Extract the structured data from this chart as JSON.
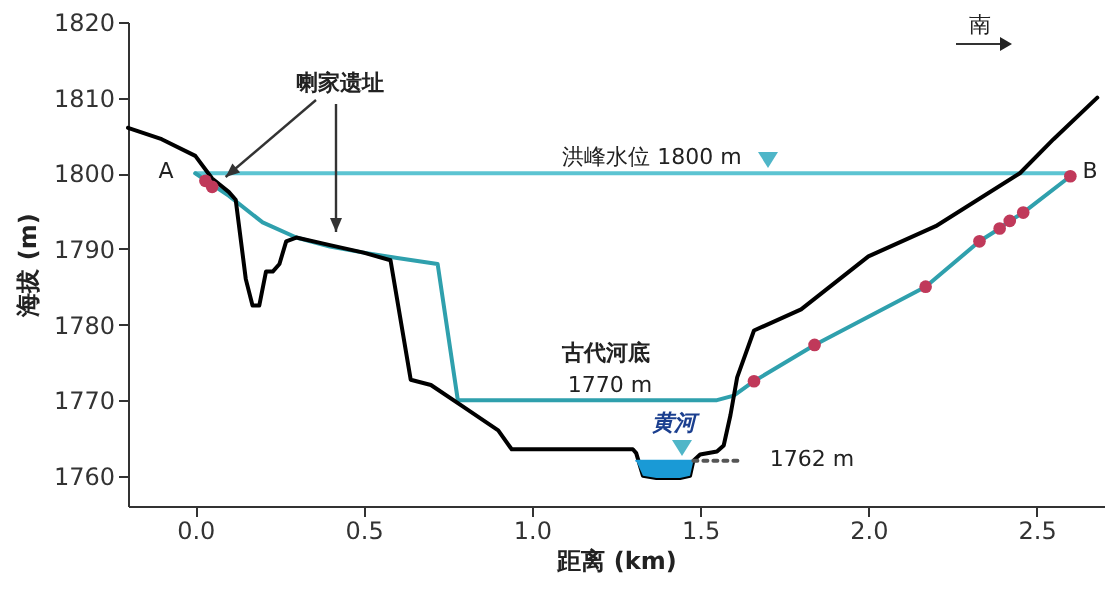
{
  "chart_data": {
    "type": "line",
    "xlabel": "距离 (km)",
    "ylabel": "海拔 (m)",
    "xlim": [
      -0.2,
      2.7
    ],
    "ylim": [
      1756,
      1820
    ],
    "xticks": [
      {
        "value": 0,
        "label": "0.0"
      },
      {
        "value": 0.5,
        "label": "0.5"
      },
      {
        "value": 1,
        "label": "1.0"
      },
      {
        "value": 1.5,
        "label": "1.5"
      },
      {
        "value": 2,
        "label": "2.0"
      },
      {
        "value": 2.5,
        "label": "2.5"
      }
    ],
    "yticks": [
      1760,
      1770,
      1780,
      1790,
      1800,
      1810,
      1820
    ],
    "grid": false,
    "marker": "none",
    "line_style": "solid",
    "series": [
      {
        "color": "#5cc4d2",
        "x": [
          0,
          2.6
        ],
        "values": [
          1800,
          1800
        ]
      },
      {
        "color": "#2fa0ad",
        "x": [
          0,
          0.05,
          0.1,
          0.2,
          0.3,
          0.4,
          0.5,
          0.6,
          0.72,
          0.78,
          1.55,
          1.6,
          1.66,
          1.84,
          2.17,
          2.33,
          2.39,
          2.42,
          2.46,
          2.6
        ],
        "values": [
          1800,
          1798.5,
          1797,
          1793.5,
          1791.5,
          1790.3,
          1789.5,
          1788.8,
          1788,
          1770,
          1770,
          1770.6,
          1772.5,
          1777.3,
          1785,
          1791,
          1792.7,
          1793.7,
          1794.8,
          1799.6
        ]
      },
      {
        "color": "#000000",
        "x": [
          -0.2,
          -0.1,
          0,
          0.05,
          0.1,
          0.12,
          0.15,
          0.17,
          0.19,
          0.21,
          0.23,
          0.25,
          0.27,
          0.3,
          0.4,
          0.5,
          0.58,
          0.64,
          0.7,
          0.8,
          0.9,
          0.94,
          1.3,
          1.31,
          1.33,
          1.37,
          1.44,
          1.47,
          1.48,
          1.5,
          1.55,
          1.57,
          1.59,
          1.61,
          1.66,
          1.8,
          2.0,
          2.2,
          2.45,
          2.55,
          2.68
        ],
        "values": [
          1806,
          1804.5,
          1802.3,
          1799.3,
          1797.5,
          1796.5,
          1786,
          1782.5,
          1782.5,
          1787,
          1787,
          1788,
          1791,
          1791.5,
          1790.5,
          1789.5,
          1788.5,
          1772.7,
          1772,
          1769,
          1766,
          1763.5,
          1763.5,
          1763,
          1760,
          1759.7,
          1759.7,
          1760,
          1762,
          1762.8,
          1763.2,
          1764,
          1768,
          1773,
          1779.2,
          1782,
          1789,
          1793,
          1800,
          1804.5,
          1810
        ]
      },
      {
        "color": "#1a9ad6",
        "x": [
          1.31,
          1.33,
          1.37,
          1.44,
          1.47,
          1.48
        ],
        "values": [
          1762,
          1762,
          1762,
          1762,
          1762,
          1762
        ],
        "lower": [
          1762,
          1760,
          1759.7,
          1759.7,
          1760,
          1762
        ],
        "upper": [
          1762,
          1762,
          1762,
          1762,
          1762,
          1762
        ]
      },
      {
        "color": "#555555",
        "line_style": "dotted",
        "x": [
          1.48,
          1.62
        ],
        "values": [
          1762,
          1762
        ]
      },
      {
        "type": "scatter",
        "color": "#c0395a",
        "marker": "circle",
        "x": [
          0.03,
          0.05,
          1.66,
          1.84,
          2.17,
          2.33,
          2.39,
          2.42,
          2.46,
          2.6
        ],
        "values": [
          1799,
          1798.2,
          1772.5,
          1777.3,
          1785,
          1791,
          1792.7,
          1793.7,
          1794.8,
          1799.6
        ]
      }
    ],
    "annotations": [
      {
        "text": "喇家遗址",
        "x": 0.09,
        "y": 1799.5
      },
      "洪峰水位 1800 m",
      "古代河底",
      "1770 m",
      "黄河",
      "1762 m",
      "A",
      "B",
      "南"
    ]
  }
}
